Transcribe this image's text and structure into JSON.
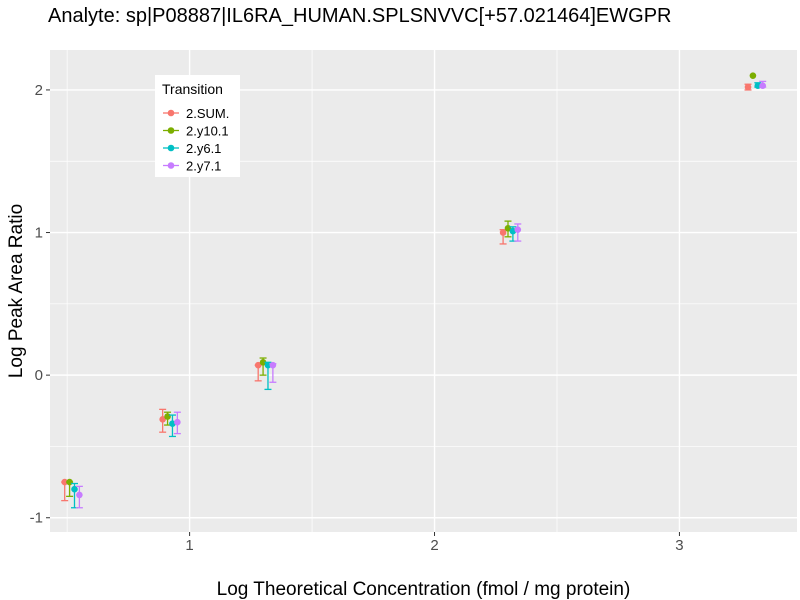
{
  "chart_data": {
    "type": "scatter",
    "title": "Analyte: sp|P08887|IL6RA_HUMAN.SPLSNVVC[+57.021464]EWGPR",
    "xlabel": "Log Theoretical Concentration (fmol / mg protein)",
    "ylabel": "Log Peak Area Ratio",
    "xlim": [
      0.43,
      3.48
    ],
    "ylim": [
      -1.1,
      2.28
    ],
    "x_ticks": [
      1,
      2,
      3
    ],
    "y_ticks": [
      -1,
      0,
      1,
      2
    ],
    "x_tick_labels": [
      "1",
      "2",
      "3"
    ],
    "y_tick_labels": [
      "-1",
      "0",
      "1",
      "2"
    ],
    "grid": true,
    "error_bars": true,
    "legend": {
      "title": "Transition",
      "placement": "top-left"
    },
    "series": [
      {
        "name": "2.SUM.",
        "color": "#F8766D",
        "points": [
          {
            "x": 0.49,
            "y": -0.75,
            "lo": -0.88,
            "hi": -0.75
          },
          {
            "x": 0.89,
            "y": -0.31,
            "lo": -0.4,
            "hi": -0.24
          },
          {
            "x": 1.28,
            "y": 0.07,
            "lo": -0.04,
            "hi": 0.07
          },
          {
            "x": 2.28,
            "y": 1.0,
            "lo": 0.92,
            "hi": 1.02
          },
          {
            "x": 3.28,
            "y": 2.02,
            "lo": 2.0,
            "hi": 2.04
          }
        ]
      },
      {
        "name": "2.y10.1",
        "color": "#7CAE00",
        "points": [
          {
            "x": 0.51,
            "y": -0.75,
            "lo": -0.85,
            "hi": -0.75
          },
          {
            "x": 0.91,
            "y": -0.29,
            "lo": -0.35,
            "hi": -0.26
          },
          {
            "x": 1.3,
            "y": 0.09,
            "lo": 0.0,
            "hi": 0.12
          },
          {
            "x": 2.3,
            "y": 1.03,
            "lo": 0.97,
            "hi": 1.08
          },
          {
            "x": 3.3,
            "y": 2.1,
            "lo": 2.1,
            "hi": 2.1
          }
        ]
      },
      {
        "name": "2.y6.1",
        "color": "#00BFC4",
        "points": [
          {
            "x": 0.53,
            "y": -0.8,
            "lo": -0.93,
            "hi": -0.76
          },
          {
            "x": 0.93,
            "y": -0.34,
            "lo": -0.43,
            "hi": -0.28
          },
          {
            "x": 1.32,
            "y": 0.07,
            "lo": -0.1,
            "hi": 0.09
          },
          {
            "x": 2.32,
            "y": 1.01,
            "lo": 0.94,
            "hi": 1.04
          },
          {
            "x": 3.32,
            "y": 2.03,
            "lo": 2.02,
            "hi": 2.05
          }
        ]
      },
      {
        "name": "2.y7.1",
        "color": "#C77CFF",
        "points": [
          {
            "x": 0.55,
            "y": -0.84,
            "lo": -0.93,
            "hi": -0.78
          },
          {
            "x": 0.95,
            "y": -0.33,
            "lo": -0.41,
            "hi": -0.26
          },
          {
            "x": 1.34,
            "y": 0.07,
            "lo": -0.05,
            "hi": 0.08
          },
          {
            "x": 2.34,
            "y": 1.02,
            "lo": 0.94,
            "hi": 1.06
          },
          {
            "x": 3.34,
            "y": 2.03,
            "lo": 2.02,
            "hi": 2.06
          }
        ]
      }
    ]
  }
}
